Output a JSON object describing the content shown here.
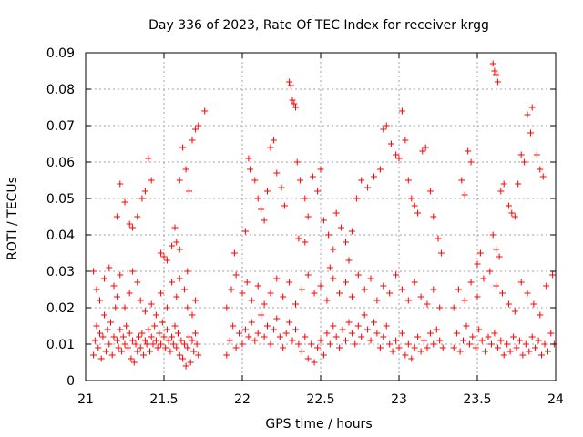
{
  "chart_data": {
    "type": "scatter",
    "title": "Day 336 of 2023, Rate Of TEC Index for receiver krgg",
    "xlabel": "GPS time / hours",
    "ylabel": "ROTI / TECUs",
    "xlim": [
      21,
      24
    ],
    "ylim": [
      0,
      0.09
    ],
    "xticks": [
      "21",
      "21.5",
      "22",
      "22.5",
      "23",
      "23.5",
      "24"
    ],
    "yticks": [
      "0",
      "0.01",
      "0.02",
      "0.03",
      "0.04",
      "0.05",
      "0.06",
      "0.07",
      "0.08",
      "0.09"
    ],
    "grid": true,
    "marker": "+",
    "color": "#ff0000",
    "points": [
      [
        21.05,
        0.007
      ],
      [
        21.06,
        0.011
      ],
      [
        21.07,
        0.015
      ],
      [
        21.08,
        0.009
      ],
      [
        21.09,
        0.013
      ],
      [
        21.1,
        0.006
      ],
      [
        21.11,
        0.012
      ],
      [
        21.12,
        0.018
      ],
      [
        21.13,
        0.008
      ],
      [
        21.14,
        0.014
      ],
      [
        21.15,
        0.01
      ],
      [
        21.16,
        0.016
      ],
      [
        21.17,
        0.007
      ],
      [
        21.18,
        0.012
      ],
      [
        21.19,
        0.02
      ],
      [
        21.2,
        0.011
      ],
      [
        21.21,
        0.009
      ],
      [
        21.22,
        0.014
      ],
      [
        21.23,
        0.008
      ],
      [
        21.24,
        0.012
      ],
      [
        21.25,
        0.01
      ],
      [
        21.26,
        0.015
      ],
      [
        21.27,
        0.009
      ],
      [
        21.28,
        0.013
      ],
      [
        21.29,
        0.006
      ],
      [
        21.3,
        0.011
      ],
      [
        21.31,
        0.005
      ],
      [
        21.32,
        0.01
      ],
      [
        21.33,
        0.008
      ],
      [
        21.34,
        0.012
      ],
      [
        21.35,
        0.009
      ],
      [
        21.36,
        0.013
      ],
      [
        21.37,
        0.007
      ],
      [
        21.38,
        0.011
      ],
      [
        21.39,
        0.01
      ],
      [
        21.4,
        0.014
      ],
      [
        21.41,
        0.008
      ],
      [
        21.42,
        0.012
      ],
      [
        21.43,
        0.01
      ],
      [
        21.44,
        0.015
      ],
      [
        21.45,
        0.011
      ],
      [
        21.46,
        0.009
      ],
      [
        21.47,
        0.013
      ],
      [
        21.48,
        0.01
      ],
      [
        21.49,
        0.016
      ],
      [
        21.5,
        0.012
      ],
      [
        21.51,
        0.009
      ],
      [
        21.52,
        0.014
      ],
      [
        21.53,
        0.011
      ],
      [
        21.54,
        0.008
      ],
      [
        21.55,
        0.012
      ],
      [
        21.56,
        0.01
      ],
      [
        21.57,
        0.015
      ],
      [
        21.58,
        0.009
      ],
      [
        21.59,
        0.013
      ],
      [
        21.6,
        0.007
      ],
      [
        21.61,
        0.011
      ],
      [
        21.62,
        0.006
      ],
      [
        21.63,
        0.01
      ],
      [
        21.64,
        0.004
      ],
      [
        21.65,
        0.009
      ],
      [
        21.66,
        0.012
      ],
      [
        21.67,
        0.005
      ],
      [
        21.68,
        0.011
      ],
      [
        21.69,
        0.008
      ],
      [
        21.7,
        0.013
      ],
      [
        21.71,
        0.01
      ],
      [
        21.72,
        0.007
      ],
      [
        21.05,
        0.03
      ],
      [
        21.07,
        0.025
      ],
      [
        21.09,
        0.022
      ],
      [
        21.12,
        0.028
      ],
      [
        21.15,
        0.031
      ],
      [
        21.18,
        0.026
      ],
      [
        21.2,
        0.023
      ],
      [
        21.22,
        0.029
      ],
      [
        21.25,
        0.02
      ],
      [
        21.28,
        0.024
      ],
      [
        21.3,
        0.03
      ],
      [
        21.33,
        0.027
      ],
      [
        21.35,
        0.022
      ],
      [
        21.38,
        0.019
      ],
      [
        21.42,
        0.021
      ],
      [
        21.45,
        0.018
      ],
      [
        21.48,
        0.024
      ],
      [
        21.52,
        0.02
      ],
      [
        21.55,
        0.027
      ],
      [
        21.58,
        0.023
      ],
      [
        21.6,
        0.028
      ],
      [
        21.63,
        0.025
      ],
      [
        21.65,
        0.02
      ],
      [
        21.68,
        0.018
      ],
      [
        21.7,
        0.022
      ],
      [
        21.2,
        0.045
      ],
      [
        21.22,
        0.054
      ],
      [
        21.25,
        0.049
      ],
      [
        21.28,
        0.043
      ],
      [
        21.3,
        0.042
      ],
      [
        21.33,
        0.045
      ],
      [
        21.36,
        0.05
      ],
      [
        21.38,
        0.052
      ],
      [
        21.4,
        0.061
      ],
      [
        21.42,
        0.055
      ],
      [
        21.48,
        0.035
      ],
      [
        21.5,
        0.034
      ],
      [
        21.52,
        0.033
      ],
      [
        21.55,
        0.037
      ],
      [
        21.57,
        0.042
      ],
      [
        21.6,
        0.055
      ],
      [
        21.62,
        0.064
      ],
      [
        21.64,
        0.058
      ],
      [
        21.66,
        0.052
      ],
      [
        21.68,
        0.066
      ],
      [
        21.7,
        0.069
      ],
      [
        21.72,
        0.07
      ],
      [
        21.76,
        0.074
      ],
      [
        21.6,
        0.036
      ],
      [
        21.65,
        0.03
      ],
      [
        21.58,
        0.038
      ],
      [
        21.9,
        0.007
      ],
      [
        21.92,
        0.011
      ],
      [
        21.94,
        0.015
      ],
      [
        21.96,
        0.009
      ],
      [
        21.98,
        0.013
      ],
      [
        22.0,
        0.01
      ],
      [
        22.02,
        0.014
      ],
      [
        22.04,
        0.012
      ],
      [
        22.06,
        0.016
      ],
      [
        22.08,
        0.011
      ],
      [
        22.1,
        0.013
      ],
      [
        22.12,
        0.018
      ],
      [
        22.14,
        0.012
      ],
      [
        22.16,
        0.015
      ],
      [
        22.18,
        0.01
      ],
      [
        22.2,
        0.014
      ],
      [
        22.22,
        0.017
      ],
      [
        22.24,
        0.012
      ],
      [
        22.26,
        0.009
      ],
      [
        22.28,
        0.013
      ],
      [
        22.3,
        0.016
      ],
      [
        22.32,
        0.011
      ],
      [
        22.34,
        0.014
      ],
      [
        22.36,
        0.01
      ],
      [
        22.38,
        0.008
      ],
      [
        22.4,
        0.012
      ],
      [
        22.42,
        0.006
      ],
      [
        22.44,
        0.01
      ],
      [
        22.46,
        0.005
      ],
      [
        22.48,
        0.009
      ],
      [
        22.5,
        0.011
      ],
      [
        22.52,
        0.007
      ],
      [
        22.54,
        0.013
      ],
      [
        22.56,
        0.01
      ],
      [
        22.58,
        0.015
      ],
      [
        22.6,
        0.012
      ],
      [
        22.62,
        0.009
      ],
      [
        22.64,
        0.014
      ],
      [
        22.66,
        0.011
      ],
      [
        22.68,
        0.016
      ],
      [
        22.7,
        0.013
      ],
      [
        22.72,
        0.01
      ],
      [
        22.74,
        0.015
      ],
      [
        22.76,
        0.012
      ],
      [
        22.78,
        0.018
      ],
      [
        22.8,
        0.014
      ],
      [
        22.82,
        0.011
      ],
      [
        22.84,
        0.016
      ],
      [
        22.86,
        0.013
      ],
      [
        22.88,
        0.009
      ],
      [
        22.9,
        0.012
      ],
      [
        22.92,
        0.015
      ],
      [
        22.94,
        0.01
      ],
      [
        22.96,
        0.008
      ],
      [
        22.98,
        0.011
      ],
      [
        23.0,
        0.009
      ],
      [
        23.02,
        0.013
      ],
      [
        23.04,
        0.007
      ],
      [
        23.06,
        0.01
      ],
      [
        23.08,
        0.006
      ],
      [
        23.1,
        0.009
      ],
      [
        23.12,
        0.012
      ],
      [
        23.14,
        0.008
      ],
      [
        23.16,
        0.011
      ],
      [
        23.18,
        0.009
      ],
      [
        23.2,
        0.013
      ],
      [
        23.22,
        0.01
      ],
      [
        23.24,
        0.014
      ],
      [
        23.26,
        0.011
      ],
      [
        23.28,
        0.009
      ],
      [
        21.9,
        0.02
      ],
      [
        21.93,
        0.025
      ],
      [
        21.96,
        0.029
      ],
      [
        22.0,
        0.024
      ],
      [
        22.03,
        0.027
      ],
      [
        22.06,
        0.022
      ],
      [
        22.1,
        0.026
      ],
      [
        22.14,
        0.021
      ],
      [
        22.18,
        0.024
      ],
      [
        22.22,
        0.028
      ],
      [
        22.26,
        0.023
      ],
      [
        22.3,
        0.027
      ],
      [
        22.34,
        0.021
      ],
      [
        22.38,
        0.025
      ],
      [
        22.42,
        0.029
      ],
      [
        22.46,
        0.024
      ],
      [
        22.5,
        0.026
      ],
      [
        22.54,
        0.022
      ],
      [
        22.58,
        0.028
      ],
      [
        22.62,
        0.024
      ],
      [
        22.66,
        0.027
      ],
      [
        22.7,
        0.023
      ],
      [
        22.74,
        0.029
      ],
      [
        22.78,
        0.025
      ],
      [
        22.82,
        0.028
      ],
      [
        22.86,
        0.022
      ],
      [
        22.9,
        0.026
      ],
      [
        22.94,
        0.024
      ],
      [
        22.98,
        0.029
      ],
      [
        23.02,
        0.025
      ],
      [
        23.06,
        0.022
      ],
      [
        23.1,
        0.027
      ],
      [
        23.14,
        0.023
      ],
      [
        23.18,
        0.021
      ],
      [
        23.22,
        0.025
      ],
      [
        23.26,
        0.02
      ],
      [
        21.95,
        0.035
      ],
      [
        22.02,
        0.041
      ],
      [
        22.04,
        0.061
      ],
      [
        22.05,
        0.058
      ],
      [
        22.08,
        0.055
      ],
      [
        22.1,
        0.05
      ],
      [
        22.12,
        0.047
      ],
      [
        22.14,
        0.044
      ],
      [
        22.16,
        0.052
      ],
      [
        22.18,
        0.064
      ],
      [
        22.2,
        0.066
      ],
      [
        22.22,
        0.057
      ],
      [
        22.25,
        0.053
      ],
      [
        22.27,
        0.048
      ],
      [
        22.3,
        0.082
      ],
      [
        22.31,
        0.081
      ],
      [
        22.32,
        0.077
      ],
      [
        22.33,
        0.076
      ],
      [
        22.34,
        0.075
      ],
      [
        22.35,
        0.06
      ],
      [
        22.37,
        0.055
      ],
      [
        22.4,
        0.05
      ],
      [
        22.42,
        0.045
      ],
      [
        22.45,
        0.056
      ],
      [
        22.48,
        0.052
      ],
      [
        22.5,
        0.058
      ],
      [
        22.52,
        0.044
      ],
      [
        22.55,
        0.04
      ],
      [
        22.58,
        0.036
      ],
      [
        22.6,
        0.046
      ],
      [
        22.63,
        0.042
      ],
      [
        22.66,
        0.038
      ],
      [
        22.7,
        0.041
      ],
      [
        22.73,
        0.05
      ],
      [
        22.76,
        0.055
      ],
      [
        22.8,
        0.053
      ],
      [
        22.84,
        0.056
      ],
      [
        22.88,
        0.058
      ],
      [
        22.9,
        0.069
      ],
      [
        22.92,
        0.07
      ],
      [
        22.95,
        0.065
      ],
      [
        22.98,
        0.062
      ],
      [
        23.0,
        0.061
      ],
      [
        23.02,
        0.074
      ],
      [
        23.04,
        0.066
      ],
      [
        23.06,
        0.055
      ],
      [
        23.08,
        0.05
      ],
      [
        23.1,
        0.048
      ],
      [
        23.12,
        0.046
      ],
      [
        23.15,
        0.063
      ],
      [
        23.17,
        0.064
      ],
      [
        23.2,
        0.052
      ],
      [
        23.22,
        0.045
      ],
      [
        23.25,
        0.039
      ],
      [
        23.27,
        0.035
      ],
      [
        22.4,
        0.038
      ],
      [
        22.68,
        0.033
      ],
      [
        22.56,
        0.031
      ],
      [
        22.36,
        0.039
      ],
      [
        23.35,
        0.009
      ],
      [
        23.37,
        0.013
      ],
      [
        23.39,
        0.008
      ],
      [
        23.41,
        0.011
      ],
      [
        23.43,
        0.015
      ],
      [
        23.45,
        0.01
      ],
      [
        23.47,
        0.012
      ],
      [
        23.49,
        0.009
      ],
      [
        23.51,
        0.014
      ],
      [
        23.53,
        0.011
      ],
      [
        23.55,
        0.008
      ],
      [
        23.57,
        0.012
      ],
      [
        23.59,
        0.01
      ],
      [
        23.61,
        0.013
      ],
      [
        23.63,
        0.009
      ],
      [
        23.65,
        0.011
      ],
      [
        23.67,
        0.007
      ],
      [
        23.69,
        0.01
      ],
      [
        23.71,
        0.008
      ],
      [
        23.73,
        0.012
      ],
      [
        23.75,
        0.009
      ],
      [
        23.77,
        0.011
      ],
      [
        23.79,
        0.007
      ],
      [
        23.81,
        0.01
      ],
      [
        23.83,
        0.008
      ],
      [
        23.85,
        0.012
      ],
      [
        23.87,
        0.009
      ],
      [
        23.89,
        0.011
      ],
      [
        23.91,
        0.007
      ],
      [
        23.93,
        0.01
      ],
      [
        23.95,
        0.008
      ],
      [
        23.97,
        0.013
      ],
      [
        23.99,
        0.01
      ],
      [
        23.35,
        0.02
      ],
      [
        23.38,
        0.025
      ],
      [
        23.42,
        0.022
      ],
      [
        23.46,
        0.027
      ],
      [
        23.5,
        0.023
      ],
      [
        23.54,
        0.028
      ],
      [
        23.58,
        0.03
      ],
      [
        23.62,
        0.026
      ],
      [
        23.66,
        0.024
      ],
      [
        23.7,
        0.021
      ],
      [
        23.74,
        0.019
      ],
      [
        23.78,
        0.027
      ],
      [
        23.82,
        0.024
      ],
      [
        23.86,
        0.021
      ],
      [
        23.9,
        0.018
      ],
      [
        23.94,
        0.026
      ],
      [
        23.98,
        0.029
      ],
      [
        23.4,
        0.055
      ],
      [
        23.42,
        0.051
      ],
      [
        23.44,
        0.063
      ],
      [
        23.46,
        0.06
      ],
      [
        23.5,
        0.032
      ],
      [
        23.52,
        0.035
      ],
      [
        23.6,
        0.087
      ],
      [
        23.61,
        0.085
      ],
      [
        23.62,
        0.084
      ],
      [
        23.63,
        0.082
      ],
      [
        23.65,
        0.052
      ],
      [
        23.67,
        0.054
      ],
      [
        23.7,
        0.048
      ],
      [
        23.72,
        0.046
      ],
      [
        23.74,
        0.045
      ],
      [
        23.76,
        0.054
      ],
      [
        23.78,
        0.062
      ],
      [
        23.8,
        0.06
      ],
      [
        23.82,
        0.073
      ],
      [
        23.84,
        0.068
      ],
      [
        23.85,
        0.075
      ],
      [
        23.88,
        0.062
      ],
      [
        23.9,
        0.058
      ],
      [
        23.92,
        0.056
      ],
      [
        23.6,
        0.04
      ],
      [
        23.62,
        0.036
      ],
      [
        23.64,
        0.034
      ]
    ]
  }
}
